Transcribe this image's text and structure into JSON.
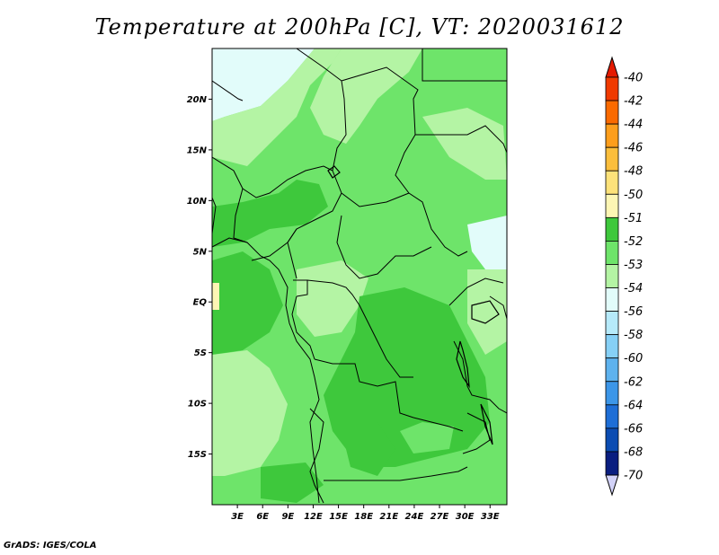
{
  "title": "Temperature at 200hPa [C], VT: 2020031612",
  "footer": "GrADS: IGES/COLA",
  "map": {
    "lon_range": [
      0,
      35
    ],
    "lat_range": [
      -20,
      25
    ],
    "lat_ticks": [
      {
        "value": 20,
        "label": "20N"
      },
      {
        "value": 15,
        "label": "15N"
      },
      {
        "value": 10,
        "label": "10N"
      },
      {
        "value": 5,
        "label": "5N"
      },
      {
        "value": 0,
        "label": "EQ"
      },
      {
        "value": -5,
        "label": "5S"
      },
      {
        "value": -10,
        "label": "10S"
      },
      {
        "value": -15,
        "label": "15S"
      }
    ],
    "lon_ticks": [
      {
        "value": 3,
        "label": "3E"
      },
      {
        "value": 6,
        "label": "6E"
      },
      {
        "value": 9,
        "label": "9E"
      },
      {
        "value": 12,
        "label": "12E"
      },
      {
        "value": 15,
        "label": "15E"
      },
      {
        "value": 18,
        "label": "18E"
      },
      {
        "value": 21,
        "label": "21E"
      },
      {
        "value": 24,
        "label": "24E"
      },
      {
        "value": 27,
        "label": "27E"
      },
      {
        "value": 30,
        "label": "30E"
      },
      {
        "value": 33,
        "label": "33E"
      }
    ]
  },
  "colorbar": {
    "levels": [
      {
        "label": "-40",
        "color": "#e41a00"
      },
      {
        "label": "-42",
        "color": "#f03a00"
      },
      {
        "label": "-44",
        "color": "#fa6a00"
      },
      {
        "label": "-46",
        "color": "#fd9e1c"
      },
      {
        "label": "-48",
        "color": "#fbbe3c"
      },
      {
        "label": "-50",
        "color": "#fde27a"
      },
      {
        "label": "-51",
        "color": "#fdf6b4"
      },
      {
        "label": "-52",
        "color": "#3ec83c"
      },
      {
        "label": "-53",
        "color": "#6ee46a"
      },
      {
        "label": "-54",
        "color": "#b4f4a4"
      },
      {
        "label": "-56",
        "color": "#e2fcfa"
      },
      {
        "label": "-58",
        "color": "#b6eafa"
      },
      {
        "label": "-60",
        "color": "#86d0f6"
      },
      {
        "label": "-62",
        "color": "#5eb2ee"
      },
      {
        "label": "-64",
        "color": "#3c96e8"
      },
      {
        "label": "-66",
        "color": "#1e6ed6"
      },
      {
        "label": "-68",
        "color": "#0c4cb2"
      },
      {
        "label": "-70",
        "color": "#0a1e80"
      }
    ],
    "top_arrow_color": "#e41a00",
    "bottom_arrow_color": "#d2d2f8"
  },
  "fills": {
    "c52": "#3ec83c",
    "c53": "#6ee46a",
    "c54": "#b4f4a4",
    "c56": "#e2fcfa",
    "c51": "#fdf6b4"
  }
}
